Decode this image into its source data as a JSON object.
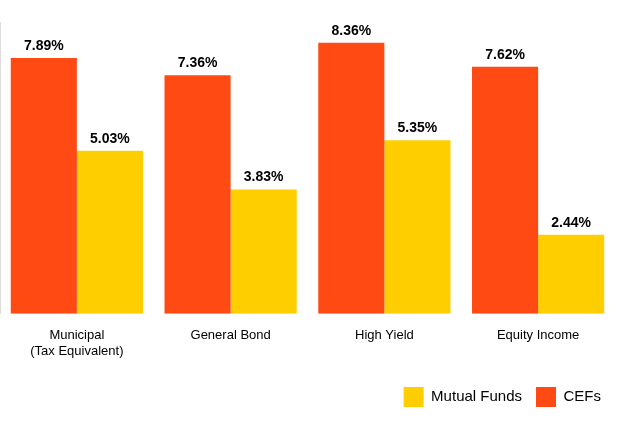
{
  "chart_data": {
    "type": "bar",
    "categories": [
      "Municipal\n(Tax Equivalent)",
      "General Bond",
      "High Yield",
      "Equity Income"
    ],
    "series": [
      {
        "name": "CEFs",
        "color": "#ff4a14",
        "values": [
          7.89,
          7.36,
          8.36,
          7.62
        ],
        "value_labels": [
          "7.89%",
          "7.36%",
          "8.36%",
          "7.62%"
        ]
      },
      {
        "name": "Mutual Funds",
        "color": "#ffce00",
        "values": [
          5.03,
          3.83,
          5.35,
          2.44
        ],
        "value_labels": [
          "5.03%",
          "3.83%",
          "5.35%",
          "2.44%"
        ]
      }
    ],
    "ylim": [
      0,
      9
    ],
    "grid": false,
    "legend": "bottom-right",
    "data_labels": true,
    "tick_labels": "x"
  }
}
